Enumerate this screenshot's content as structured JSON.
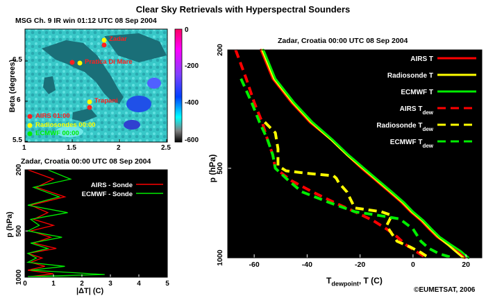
{
  "main_title": "Clear Sky Retrievals with Hyperspectral Sounders",
  "copyright": "©EUMETSAT, 2006",
  "map_panel": {
    "title": "MSG Ch. 9 IR win   01:12 UTC   08 Sep 2004",
    "ylabel": "Beta (degrees)",
    "xticks": [
      "1",
      "1.5",
      "2",
      "2.5"
    ],
    "yticks": [
      "5.5",
      "6",
      "6.5"
    ],
    "colorbar_ticks": [
      "0",
      "-200",
      "-400",
      "-600"
    ],
    "stations": [
      {
        "name": "Zadar"
      },
      {
        "name": "Pratica Di Mare"
      },
      {
        "name": "Trapani"
      }
    ],
    "legend": [
      {
        "label": "AIRS 01:00",
        "color": "#ff2020"
      },
      {
        "label": "Radiosondes 00:00",
        "color": "#ffff00"
      },
      {
        "label": "ECMWF 00:00",
        "color": "#00ee00"
      }
    ]
  },
  "chart_data": [
    {
      "type": "line",
      "title": "Zadar, Croatia  00:00 UTC  08 Sep 2004",
      "xlabel_main": "T",
      "xlabel_sub": "dewpoint",
      "xlabel_rest": ", T (C)",
      "ylabel": "p (hPa)",
      "xlim": [
        -70,
        26
      ],
      "ylim": [
        200,
        1000
      ],
      "xticks": [
        "-60",
        "-40",
        "-20",
        "0",
        "20"
      ],
      "yticks": [
        "200",
        "500",
        "1000"
      ],
      "series": [
        {
          "name": "AIRS T",
          "sub": "",
          "color": "#ff0000",
          "dash": false,
          "points": [
            [
              -57.5,
              200
            ],
            [
              -53,
              250
            ],
            [
              -46,
              300
            ],
            [
              -39,
              350
            ],
            [
              -31,
              400
            ],
            [
              -25,
              450
            ],
            [
              -19.5,
              500
            ],
            [
              -14,
              550
            ],
            [
              -9,
              600
            ],
            [
              -4.5,
              650
            ],
            [
              -1,
              700
            ],
            [
              3,
              750
            ],
            [
              6,
              800
            ],
            [
              9,
              850
            ],
            [
              13,
              900
            ],
            [
              17,
              950
            ],
            [
              19.5,
              1000
            ]
          ]
        },
        {
          "name": "Radiosonde T",
          "sub": "",
          "color": "#ffff00",
          "dash": false,
          "points": [
            [
              -57,
              200
            ],
            [
              -52.5,
              250
            ],
            [
              -45.5,
              300
            ],
            [
              -38.5,
              350
            ],
            [
              -31,
              400
            ],
            [
              -25,
              450
            ],
            [
              -19,
              500
            ],
            [
              -13.5,
              550
            ],
            [
              -8.5,
              600
            ],
            [
              -4,
              650
            ],
            [
              -0.5,
              700
            ],
            [
              3.5,
              750
            ],
            [
              6.5,
              800
            ],
            [
              9.5,
              850
            ],
            [
              13,
              900
            ],
            [
              16,
              950
            ],
            [
              19,
              1000
            ]
          ]
        },
        {
          "name": "ECMWF T",
          "sub": "",
          "color": "#00ee00",
          "dash": false,
          "points": [
            [
              -56.5,
              200
            ],
            [
              -52,
              250
            ],
            [
              -45,
              300
            ],
            [
              -38,
              350
            ],
            [
              -30.5,
              400
            ],
            [
              -24.5,
              450
            ],
            [
              -18.5,
              500
            ],
            [
              -13,
              550
            ],
            [
              -8,
              600
            ],
            [
              -3.5,
              650
            ],
            [
              0,
              700
            ],
            [
              4,
              750
            ],
            [
              7,
              800
            ],
            [
              10,
              850
            ],
            [
              14,
              900
            ],
            [
              18,
              950
            ],
            [
              21,
              1000
            ]
          ]
        },
        {
          "name": "AIRS T",
          "sub": "dew",
          "color": "#ff0000",
          "dash": true,
          "points": [
            [
              -67,
              200
            ],
            [
              -63,
              250
            ],
            [
              -60,
              300
            ],
            [
              -57,
              350
            ],
            [
              -55,
              400
            ],
            [
              -53,
              450
            ],
            [
              -52,
              500
            ],
            [
              -46,
              550
            ],
            [
              -38,
              600
            ],
            [
              -30,
              650
            ],
            [
              -22,
              700
            ],
            [
              -15,
              750
            ],
            [
              -10,
              800
            ],
            [
              -6,
              850
            ],
            [
              -3,
              900
            ],
            [
              1,
              950
            ],
            [
              5,
              1000
            ]
          ]
        },
        {
          "name": "Radiosonde T",
          "sub": "dew",
          "color": "#ffff00",
          "dash": true,
          "points": [
            [
              -56,
              350
            ],
            [
              -52,
              380
            ],
            [
              -51,
              430
            ],
            [
              -51,
              490
            ],
            [
              -48,
              510
            ],
            [
              -40,
              520
            ],
            [
              -30,
              530
            ],
            [
              -29,
              540
            ],
            [
              -28,
              560
            ],
            [
              -25,
              600
            ],
            [
              -22,
              680
            ],
            [
              -17,
              690
            ],
            [
              -12,
              700
            ],
            [
              -8,
              720
            ],
            [
              -10,
              780
            ],
            [
              -8,
              830
            ],
            [
              -6,
              880
            ],
            [
              -1,
              920
            ],
            [
              3,
              960
            ],
            [
              6,
              1000
            ]
          ]
        },
        {
          "name": "ECMWF T",
          "sub": "dew",
          "color": "#00ee00",
          "dash": true,
          "points": [
            [
              -65,
              250
            ],
            [
              -61,
              300
            ],
            [
              -58,
              350
            ],
            [
              -55,
              400
            ],
            [
              -53,
              450
            ],
            [
              -52,
              500
            ],
            [
              -47,
              550
            ],
            [
              -42,
              600
            ],
            [
              -32,
              650
            ],
            [
              -22,
              700
            ],
            [
              -13,
              720
            ],
            [
              -5,
              740
            ],
            [
              0,
              800
            ],
            [
              3,
              880
            ],
            [
              6,
              930
            ],
            [
              10,
              970
            ],
            [
              15,
              1000
            ]
          ]
        }
      ]
    },
    {
      "type": "line",
      "title": "Zadar, Croatia  00:00 UTC  08 Sep 2004",
      "xlabel": "|ΔT| (C)",
      "ylabel": "p (hPa)",
      "xlim": [
        0,
        5
      ],
      "ylim": [
        200,
        1000
      ],
      "xticks": [
        "0",
        "1",
        "2",
        "3",
        "4",
        "5"
      ],
      "yticks": [
        "200",
        "500",
        "1000"
      ],
      "series": [
        {
          "name": "AIRS - Sonde",
          "color": "#ff0000",
          "points": [
            [
              0.1,
              200
            ],
            [
              1.0,
              230
            ],
            [
              0.4,
              260
            ],
            [
              1.4,
              300
            ],
            [
              0.2,
              340
            ],
            [
              0.8,
              380
            ],
            [
              0.3,
              420
            ],
            [
              1.0,
              460
            ],
            [
              0.2,
              500
            ],
            [
              0.9,
              550
            ],
            [
              0.3,
              600
            ],
            [
              1.1,
              650
            ],
            [
              0.1,
              700
            ],
            [
              0.6,
              750
            ],
            [
              0.2,
              800
            ],
            [
              0.7,
              850
            ],
            [
              0.1,
              900
            ],
            [
              1.0,
              950
            ],
            [
              0.2,
              990
            ],
            [
              0.6,
              1000
            ]
          ]
        },
        {
          "name": "ECMWF - Sonde",
          "color": "#00ee00",
          "points": [
            [
              0.8,
              200
            ],
            [
              1.6,
              230
            ],
            [
              0.3,
              260
            ],
            [
              1.2,
              300
            ],
            [
              0.1,
              340
            ],
            [
              1.5,
              380
            ],
            [
              0.2,
              420
            ],
            [
              0.5,
              460
            ],
            [
              0.1,
              500
            ],
            [
              1.3,
              550
            ],
            [
              0.2,
              600
            ],
            [
              0.8,
              650
            ],
            [
              0.1,
              700
            ],
            [
              0.4,
              750
            ],
            [
              0.1,
              800
            ],
            [
              1.4,
              850
            ],
            [
              0.2,
              900
            ],
            [
              2.8,
              960
            ],
            [
              0.1,
              990
            ],
            [
              2.0,
              1000
            ]
          ]
        }
      ]
    }
  ]
}
